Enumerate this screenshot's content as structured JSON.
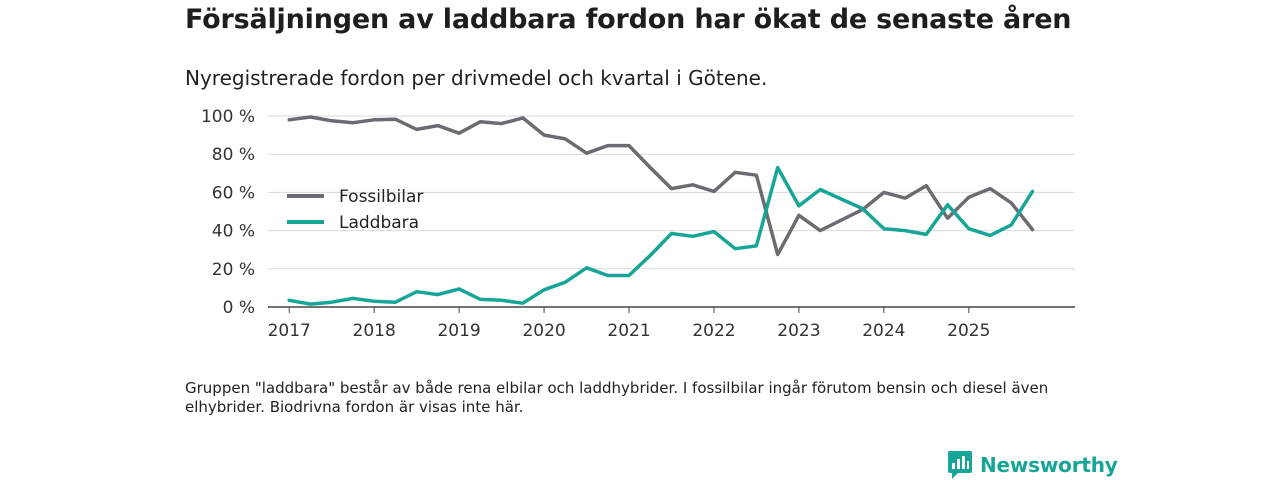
{
  "header": {
    "title": "Försäljningen av laddbara fordon har ökat de senaste åren",
    "subtitle": "Nyregistrerade fordon per drivmedel och kvartal i Götene."
  },
  "footer": {
    "note": "Gruppen \"laddbara\" består av både rena elbilar och laddhybrider. I fossilbilar ingår förutom bensin och diesel även elhybrider. Biodrivna fordon är visas inte här.",
    "brand": "Newsworthy"
  },
  "colors": {
    "fossil": "#6d6b72",
    "laddbara": "#17a597",
    "grid": "#d9d9d9",
    "axis": "#444444",
    "brand": "#17a597"
  },
  "chart_data": {
    "type": "line",
    "title": "Försäljningen av laddbara fordon har ökat de senaste åren",
    "subtitle": "Nyregistrerade fordon per drivmedel och kvartal i Götene.",
    "xlabel": "",
    "ylabel": "",
    "ylim": [
      0,
      100
    ],
    "yticks": [
      0,
      20,
      40,
      60,
      80,
      100
    ],
    "ytick_labels": [
      "0 %",
      "20 %",
      "40 %",
      "60 %",
      "80 %",
      "100 %"
    ],
    "xlim": [
      2016.75,
      2026.25
    ],
    "xticks": [
      2017,
      2018,
      2019,
      2020,
      2021,
      2022,
      2023,
      2024,
      2025
    ],
    "xtick_labels": [
      "2017",
      "2018",
      "2019",
      "2020",
      "2021",
      "2022",
      "2023",
      "2024",
      "2025"
    ],
    "grid": true,
    "legend_position": "left-middle",
    "x": [
      2017.0,
      2017.25,
      2017.5,
      2017.75,
      2018.0,
      2018.25,
      2018.5,
      2018.75,
      2019.0,
      2019.25,
      2019.5,
      2019.75,
      2020.0,
      2020.25,
      2020.5,
      2020.75,
      2021.0,
      2021.25,
      2021.5,
      2021.75,
      2022.0,
      2022.25,
      2022.5,
      2022.75,
      2023.0,
      2023.25,
      2023.5,
      2023.75,
      2024.0,
      2024.25,
      2024.5,
      2024.75,
      2025.0,
      2025.25,
      2025.5,
      2025.75
    ],
    "series": [
      {
        "name": "Fossilbilar",
        "key": "fossil",
        "values": [
          98,
          99.5,
          97.5,
          96.5,
          98,
          98.3,
          93,
          95,
          91,
          97,
          96,
          99,
          90,
          88,
          80.5,
          84.5,
          84.5,
          73,
          62,
          64,
          60.5,
          70.5,
          69,
          27.5,
          48,
          40,
          45.5,
          51,
          60,
          57,
          63.5,
          46.5,
          57.5,
          62,
          54.5,
          40.5
        ]
      },
      {
        "name": "Laddbara",
        "key": "laddbara",
        "values": [
          3.5,
          1.5,
          2.5,
          4.5,
          3,
          2.5,
          8,
          6.5,
          9.5,
          4,
          3.5,
          2,
          9,
          13,
          20.5,
          16.5,
          16.5,
          27,
          38.5,
          37,
          39.5,
          30.5,
          32,
          73,
          53,
          61.5,
          56.5,
          51.5,
          41,
          40,
          38,
          53.5,
          41,
          37.5,
          43,
          60.5
        ]
      }
    ]
  }
}
